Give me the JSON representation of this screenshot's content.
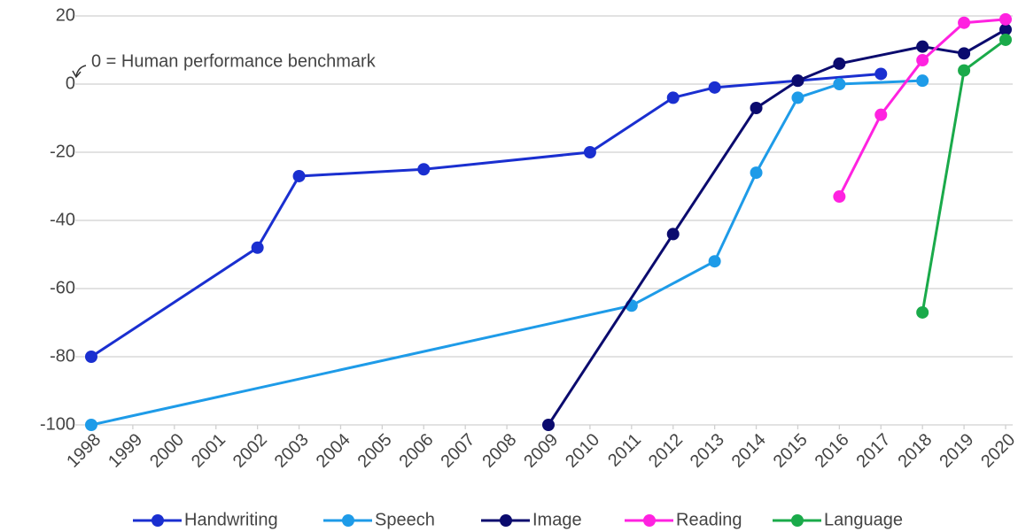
{
  "chart_data": {
    "type": "line",
    "annotation": "0 = Human performance benchmark",
    "xlim": [
      1998,
      2020
    ],
    "xticks": [
      1998,
      1999,
      2000,
      2001,
      2002,
      2003,
      2004,
      2005,
      2006,
      2007,
      2008,
      2009,
      2010,
      2011,
      2012,
      2013,
      2014,
      2015,
      2016,
      2017,
      2018,
      2019,
      2020
    ],
    "ylim": [
      -100,
      20
    ],
    "yticks": [
      20,
      0,
      -20,
      -40,
      -60,
      -80,
      -100
    ],
    "grid": true,
    "legend": "bottom",
    "series": [
      {
        "name": "Handwriting",
        "color": "#1a2fd0",
        "x": [
          1998,
          2002,
          2003,
          2006,
          2010,
          2012,
          2013,
          2015,
          2017
        ],
        "values": [
          -80,
          -48,
          -27,
          -25,
          -20,
          -4,
          -1,
          1,
          3
        ]
      },
      {
        "name": "Speech",
        "color": "#1e9be8",
        "x": [
          1998,
          2011,
          2013,
          2014,
          2015,
          2016,
          2018
        ],
        "values": [
          -100,
          -65,
          -52,
          -26,
          -4,
          0,
          1
        ]
      },
      {
        "name": "Image",
        "color": "#0b0b6e",
        "x": [
          2009,
          2012,
          2014,
          2015,
          2016,
          2018,
          2019,
          2020
        ],
        "values": [
          -100,
          -44,
          -7,
          1,
          6,
          11,
          9,
          16
        ]
      },
      {
        "name": "Reading",
        "color": "#ff22e0",
        "x": [
          2016,
          2017,
          2018,
          2019,
          2020
        ],
        "values": [
          -33,
          -9,
          7,
          18,
          19
        ]
      },
      {
        "name": "Language",
        "color": "#1aaa4a",
        "x": [
          2018,
          2019,
          2020
        ],
        "values": [
          -67,
          4,
          13
        ]
      }
    ]
  }
}
